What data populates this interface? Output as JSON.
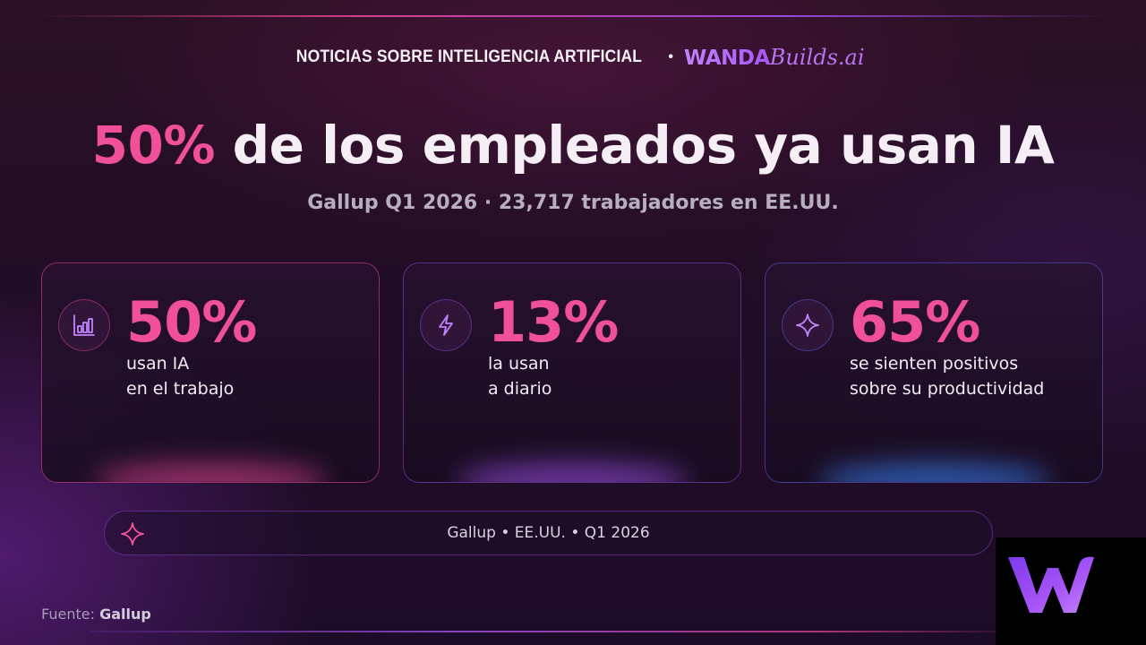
{
  "header": {
    "kicker": "NOTICIAS  SOBRE INTELIGENCIA ARTIFICIAL",
    "separator": "•",
    "brand_part1": "WANDA",
    "brand_part2": "Builds.ai"
  },
  "headline": {
    "highlight": "50%",
    "rest": " de los empleados ya usan IA"
  },
  "subtitle": "Gallup Q1 2026 · 23,717 trabajadores en EE.UU.",
  "cards": [
    {
      "icon": "bar-chart-icon",
      "value": "50%",
      "line1": "usan IA",
      "line2": "en el trabajo"
    },
    {
      "icon": "lightning-icon",
      "value": "13%",
      "line1": "la usan",
      "line2": "a diario"
    },
    {
      "icon": "sparkle-icon",
      "value": "65%",
      "line1": "se sienten positivos",
      "line2": "sobre su productividad"
    }
  ],
  "footer_pill": {
    "icon": "sparkle-icon",
    "text": "Gallup • EE.UU. • Q1 2026"
  },
  "source": {
    "label": "Fuente:",
    "value": "Gallup"
  },
  "logo": {
    "icon": "wanda-w-logo"
  },
  "colors": {
    "accent_pink": "#f0509a",
    "accent_purple": "#a855f7",
    "accent_blue": "#3b82f6",
    "background": "#220d26"
  }
}
